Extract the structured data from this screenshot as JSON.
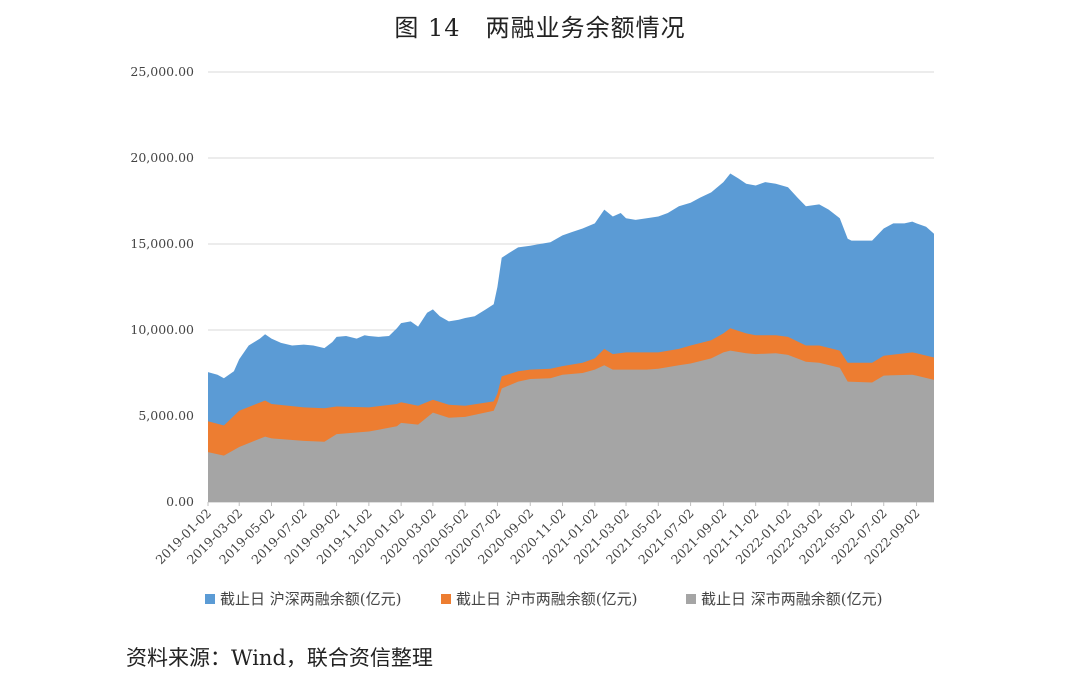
{
  "figure": {
    "caption": "图 14　两融业务余额情况",
    "source": "资料来源：Wind，联合资信整理"
  },
  "colors": {
    "total": "#5b9bd5",
    "sh": "#ed7d31",
    "sz": "#a5a5a5",
    "grid": "#d9d9d9"
  },
  "chart_data": {
    "type": "area",
    "stacking": "overlay",
    "title": "",
    "xlabel": "",
    "ylabel": "",
    "ylim": [
      0,
      25000
    ],
    "yticks": [
      "0.00",
      "5,000.00",
      "10,000.00",
      "15,000.00",
      "20,000.00",
      "25,000.00"
    ],
    "grid": true,
    "legend_position": "bottom",
    "x": [
      "2019-01-02",
      "2019-03-02",
      "2019-05-02",
      "2019-07-02",
      "2019-09-02",
      "2019-11-02",
      "2020-01-02",
      "2020-03-02",
      "2020-05-02",
      "2020-07-02",
      "2020-09-02",
      "2020-11-02",
      "2021-01-02",
      "2021-03-02",
      "2021-05-02",
      "2021-07-02",
      "2021-09-02",
      "2021-11-02",
      "2022-01-02",
      "2022-03-02",
      "2022-05-02",
      "2022-07-02",
      "2022-09-02"
    ],
    "series": [
      {
        "key": "total",
        "name": "截止日 沪深两融余额(亿元)",
        "points": [
          [
            "2019-01-02",
            7550
          ],
          [
            "2019-01-20",
            7400
          ],
          [
            "2019-02-01",
            7200
          ],
          [
            "2019-02-20",
            7600
          ],
          [
            "2019-03-02",
            8300
          ],
          [
            "2019-03-20",
            9100
          ],
          [
            "2019-04-10",
            9500
          ],
          [
            "2019-04-20",
            9750
          ],
          [
            "2019-05-02",
            9500
          ],
          [
            "2019-05-20",
            9250
          ],
          [
            "2019-06-10",
            9100
          ],
          [
            "2019-07-02",
            9150
          ],
          [
            "2019-07-20",
            9100
          ],
          [
            "2019-08-10",
            8950
          ],
          [
            "2019-08-25",
            9300
          ],
          [
            "2019-09-02",
            9600
          ],
          [
            "2019-09-20",
            9650
          ],
          [
            "2019-10-10",
            9500
          ],
          [
            "2019-10-25",
            9700
          ],
          [
            "2019-11-02",
            9650
          ],
          [
            "2019-11-20",
            9600
          ],
          [
            "2019-12-10",
            9650
          ],
          [
            "2019-12-25",
            10100
          ],
          [
            "2020-01-02",
            10400
          ],
          [
            "2020-01-20",
            10500
          ],
          [
            "2020-02-03",
            10200
          ],
          [
            "2020-02-20",
            11000
          ],
          [
            "2020-03-02",
            11200
          ],
          [
            "2020-03-15",
            10800
          ],
          [
            "2020-04-01",
            10500
          ],
          [
            "2020-04-20",
            10600
          ],
          [
            "2020-05-02",
            10700
          ],
          [
            "2020-05-20",
            10800
          ],
          [
            "2020-06-10",
            11200
          ],
          [
            "2020-06-25",
            11500
          ],
          [
            "2020-07-02",
            12500
          ],
          [
            "2020-07-10",
            14200
          ],
          [
            "2020-07-25",
            14500
          ],
          [
            "2020-08-10",
            14800
          ],
          [
            "2020-09-02",
            14900
          ],
          [
            "2020-09-20",
            15000
          ],
          [
            "2020-10-10",
            15100
          ],
          [
            "2020-11-02",
            15500
          ],
          [
            "2020-11-20",
            15700
          ],
          [
            "2020-12-10",
            15900
          ],
          [
            "2021-01-02",
            16200
          ],
          [
            "2021-01-20",
            17000
          ],
          [
            "2021-02-05",
            16600
          ],
          [
            "2021-02-20",
            16800
          ],
          [
            "2021-03-02",
            16500
          ],
          [
            "2021-03-20",
            16400
          ],
          [
            "2021-04-10",
            16500
          ],
          [
            "2021-05-02",
            16600
          ],
          [
            "2021-05-20",
            16800
          ],
          [
            "2021-06-10",
            17200
          ],
          [
            "2021-07-02",
            17400
          ],
          [
            "2021-07-20",
            17700
          ],
          [
            "2021-08-10",
            18000
          ],
          [
            "2021-09-02",
            18600
          ],
          [
            "2021-09-15",
            19100
          ],
          [
            "2021-10-01",
            18800
          ],
          [
            "2021-10-15",
            18500
          ],
          [
            "2021-11-02",
            18400
          ],
          [
            "2021-11-20",
            18600
          ],
          [
            "2021-12-10",
            18500
          ],
          [
            "2022-01-02",
            18300
          ],
          [
            "2022-01-20",
            17700
          ],
          [
            "2022-02-05",
            17200
          ],
          [
            "2022-03-02",
            17300
          ],
          [
            "2022-03-20",
            17000
          ],
          [
            "2022-04-10",
            16500
          ],
          [
            "2022-04-25",
            15300
          ],
          [
            "2022-05-02",
            15200
          ],
          [
            "2022-05-20",
            15200
          ],
          [
            "2022-06-10",
            15200
          ],
          [
            "2022-07-02",
            15900
          ],
          [
            "2022-07-20",
            16200
          ],
          [
            "2022-08-10",
            16200
          ],
          [
            "2022-08-25",
            16300
          ],
          [
            "2022-09-02",
            16200
          ],
          [
            "2022-09-20",
            16000
          ],
          [
            "2022-10-05",
            15600
          ]
        ]
      },
      {
        "key": "sh",
        "name": "截止日 沪市两融余额(亿元)",
        "points": [
          [
            "2019-01-02",
            4700
          ],
          [
            "2019-02-01",
            4450
          ],
          [
            "2019-03-02",
            5300
          ],
          [
            "2019-04-20",
            5900
          ],
          [
            "2019-05-02",
            5700
          ],
          [
            "2019-07-02",
            5500
          ],
          [
            "2019-08-10",
            5450
          ],
          [
            "2019-09-02",
            5550
          ],
          [
            "2019-11-02",
            5500
          ],
          [
            "2019-12-25",
            5700
          ],
          [
            "2020-01-02",
            5800
          ],
          [
            "2020-02-03",
            5600
          ],
          [
            "2020-03-02",
            5950
          ],
          [
            "2020-04-01",
            5650
          ],
          [
            "2020-05-02",
            5600
          ],
          [
            "2020-06-25",
            5850
          ],
          [
            "2020-07-02",
            6300
          ],
          [
            "2020-07-10",
            7300
          ],
          [
            "2020-08-10",
            7600
          ],
          [
            "2020-09-02",
            7700
          ],
          [
            "2020-10-10",
            7750
          ],
          [
            "2020-11-02",
            7900
          ],
          [
            "2020-12-10",
            8100
          ],
          [
            "2021-01-02",
            8350
          ],
          [
            "2021-01-20",
            8900
          ],
          [
            "2021-02-05",
            8600
          ],
          [
            "2021-03-02",
            8700
          ],
          [
            "2021-04-10",
            8700
          ],
          [
            "2021-05-02",
            8700
          ],
          [
            "2021-06-10",
            8900
          ],
          [
            "2021-07-02",
            9100
          ],
          [
            "2021-08-10",
            9400
          ],
          [
            "2021-09-02",
            9800
          ],
          [
            "2021-09-15",
            10100
          ],
          [
            "2021-10-15",
            9800
          ],
          [
            "2021-11-02",
            9700
          ],
          [
            "2021-12-10",
            9700
          ],
          [
            "2022-01-02",
            9600
          ],
          [
            "2022-02-05",
            9100
          ],
          [
            "2022-03-02",
            9100
          ],
          [
            "2022-04-10",
            8800
          ],
          [
            "2022-04-25",
            8100
          ],
          [
            "2022-06-10",
            8100
          ],
          [
            "2022-07-02",
            8500
          ],
          [
            "2022-08-25",
            8700
          ],
          [
            "2022-09-02",
            8650
          ],
          [
            "2022-10-05",
            8400
          ]
        ]
      },
      {
        "key": "sz",
        "name": "截止日 深市两融余额(亿元)",
        "points": [
          [
            "2019-01-02",
            2900
          ],
          [
            "2019-02-01",
            2700
          ],
          [
            "2019-03-02",
            3200
          ],
          [
            "2019-04-20",
            3800
          ],
          [
            "2019-05-02",
            3700
          ],
          [
            "2019-07-02",
            3550
          ],
          [
            "2019-08-10",
            3500
          ],
          [
            "2019-09-02",
            3950
          ],
          [
            "2019-11-02",
            4100
          ],
          [
            "2019-12-25",
            4400
          ],
          [
            "2020-01-02",
            4600
          ],
          [
            "2020-02-03",
            4500
          ],
          [
            "2020-03-02",
            5200
          ],
          [
            "2020-04-01",
            4900
          ],
          [
            "2020-05-02",
            4950
          ],
          [
            "2020-06-25",
            5300
          ],
          [
            "2020-07-02",
            5800
          ],
          [
            "2020-07-10",
            6600
          ],
          [
            "2020-08-10",
            7000
          ],
          [
            "2020-09-02",
            7150
          ],
          [
            "2020-10-10",
            7200
          ],
          [
            "2020-11-02",
            7400
          ],
          [
            "2020-12-10",
            7500
          ],
          [
            "2021-01-02",
            7700
          ],
          [
            "2021-01-20",
            7950
          ],
          [
            "2021-02-05",
            7700
          ],
          [
            "2021-03-02",
            7700
          ],
          [
            "2021-04-10",
            7700
          ],
          [
            "2021-05-02",
            7750
          ],
          [
            "2021-06-10",
            7950
          ],
          [
            "2021-07-02",
            8050
          ],
          [
            "2021-08-10",
            8350
          ],
          [
            "2021-09-02",
            8700
          ],
          [
            "2021-09-15",
            8800
          ],
          [
            "2021-10-15",
            8650
          ],
          [
            "2021-11-02",
            8600
          ],
          [
            "2021-12-10",
            8650
          ],
          [
            "2022-01-02",
            8550
          ],
          [
            "2022-02-05",
            8150
          ],
          [
            "2022-03-02",
            8100
          ],
          [
            "2022-04-10",
            7800
          ],
          [
            "2022-04-25",
            7000
          ],
          [
            "2022-06-10",
            6950
          ],
          [
            "2022-07-02",
            7350
          ],
          [
            "2022-08-25",
            7400
          ],
          [
            "2022-09-02",
            7350
          ],
          [
            "2022-10-05",
            7100
          ]
        ]
      }
    ]
  }
}
